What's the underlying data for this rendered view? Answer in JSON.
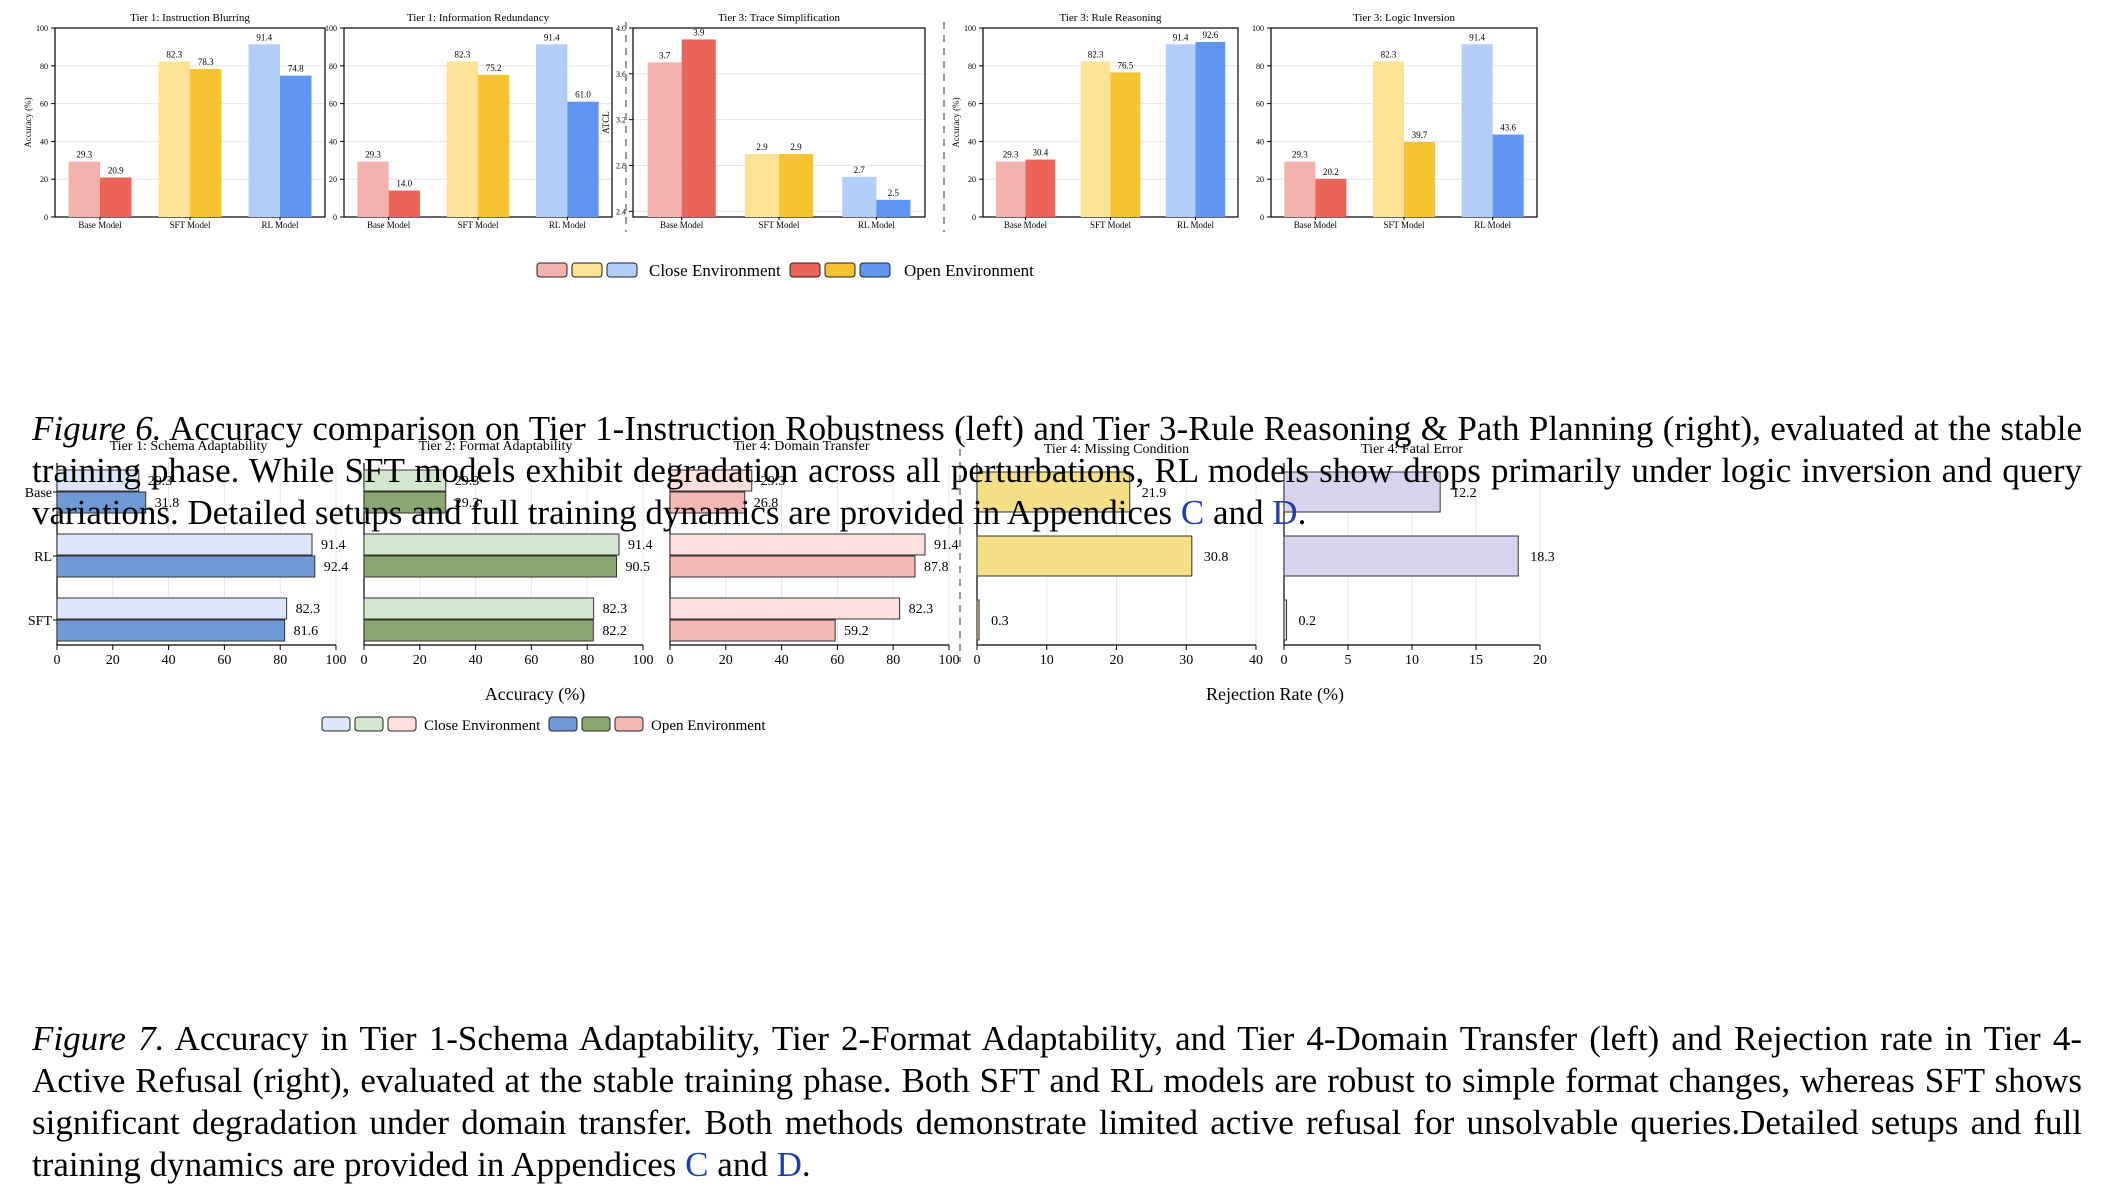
{
  "figure6": {
    "caption": {
      "label": "Figure 6.",
      "text": "Accuracy comparison on Tier 1-Instruction Robustness (left) and Tier 3-Rule Reasoning & Path Planning (right), evaluated at the stable training phase. While SFT models exhibit degradation across all perturbations, RL models show drops primarily under logic inversion and query variations. Detailed setups and full training dynamics are provided in Appendices ",
      "ref1": "C",
      "mid": " and ",
      "ref2": "D",
      "end": "."
    },
    "legend": {
      "close": "Close Environment",
      "open": "Open Environment"
    }
  },
  "figure7": {
    "caption": {
      "label": "Figure 7.",
      "text": "Accuracy in Tier 1-Schema Adaptability, Tier 2-Format Adaptability, and Tier 4-Domain Transfer (left) and Rejection rate in Tier 4-Active Refusal (right), evaluated at the stable training phase. Both SFT and RL models are robust to simple format changes, whereas SFT shows significant degradation under domain transfer. Both methods demonstrate limited active refusal for unsolvable queries.Detailed setups and full training dynamics are provided in Appendices ",
      "ref1": "C",
      "mid": " and ",
      "ref2": "D",
      "end": "."
    },
    "legend": {
      "close": "Close Environment",
      "open": "Open Environment"
    },
    "xlabel_left": "Accuracy (%)",
    "xlabel_right": "Rejection Rate (%)"
  },
  "colors": {
    "base_close": "#f4b1ad",
    "base_open": "#ec6357",
    "sft_close": "#fbe294",
    "sft_open": "#f6c431",
    "rl_close": "#b3cdf9",
    "rl_open": "#5e96f0",
    "blue_close": "#dbe6fb",
    "blue_open": "#7099d8",
    "green_close": "#d3e7cf",
    "green_open": "#89a771",
    "pink_close": "#fde0dd",
    "pink_open": "#f5b9b5",
    "yellow": "#f4df86",
    "purple": "#d9d2ee"
  },
  "chart_data": [
    {
      "type": "bar",
      "title": "Tier 1: Instruction Blurring",
      "ylabel": "Accuracy (%)",
      "ylim": [
        0,
        100
      ],
      "categories": [
        "Base Model",
        "SFT Model",
        "RL Model"
      ],
      "series": [
        {
          "name": "Close Environment",
          "values": [
            29.3,
            82.3,
            91.4
          ]
        },
        {
          "name": "Open Environment",
          "values": [
            20.9,
            78.3,
            74.8
          ]
        }
      ]
    },
    {
      "type": "bar",
      "title": "Tier 1: Information Redundancy",
      "ylabel": "",
      "ylim": [
        0,
        100
      ],
      "categories": [
        "Base Model",
        "SFT Model",
        "RL Model"
      ],
      "series": [
        {
          "name": "Close Environment",
          "values": [
            29.3,
            82.3,
            91.4
          ]
        },
        {
          "name": "Open Environment",
          "values": [
            14.0,
            75.2,
            61.0
          ]
        }
      ]
    },
    {
      "type": "bar",
      "title": "Tier 3: Trace Simplification",
      "ylabel": "ATCL",
      "ylim": [
        2.35,
        4.0
      ],
      "categories": [
        "Base Model",
        "SFT Model",
        "RL Model"
      ],
      "series": [
        {
          "name": "Close Environment",
          "values": [
            3.7,
            2.9,
            2.7
          ]
        },
        {
          "name": "Open Environment",
          "values": [
            3.9,
            2.9,
            2.5
          ]
        }
      ]
    },
    {
      "type": "bar",
      "title": "Tier 3: Rule Reasoning",
      "ylabel": "Accuracy (%)",
      "ylim": [
        0,
        100
      ],
      "categories": [
        "Base Model",
        "SFT Model",
        "RL Model"
      ],
      "series": [
        {
          "name": "Close Environment",
          "values": [
            29.3,
            82.3,
            91.4
          ]
        },
        {
          "name": "Open Environment",
          "values": [
            30.4,
            76.5,
            92.6
          ]
        }
      ]
    },
    {
      "type": "bar",
      "title": "Tier 3: Logic Inversion",
      "ylabel": "",
      "ylim": [
        0,
        100
      ],
      "categories": [
        "Base Model",
        "SFT Model",
        "RL Model"
      ],
      "series": [
        {
          "name": "Close Environment",
          "values": [
            29.3,
            82.3,
            91.4
          ]
        },
        {
          "name": "Open Environment",
          "values": [
            20.2,
            39.7,
            43.6
          ]
        }
      ]
    },
    {
      "type": "bar",
      "orientation": "horizontal",
      "title": "Tier 1: Schema Adaptability",
      "xlim": [
        0,
        100
      ],
      "categories": [
        "Base",
        "RL",
        "SFT"
      ],
      "series": [
        {
          "name": "Close Environment",
          "values": [
            29.3,
            91.4,
            82.3
          ]
        },
        {
          "name": "Open Environment",
          "values": [
            31.8,
            92.4,
            81.6
          ]
        }
      ]
    },
    {
      "type": "bar",
      "orientation": "horizontal",
      "title": "Tier 2: Format Adaptability",
      "xlim": [
        0,
        100
      ],
      "categories": [
        "Base",
        "RL",
        "SFT"
      ],
      "series": [
        {
          "name": "Close Environment",
          "values": [
            29.3,
            91.4,
            82.3
          ]
        },
        {
          "name": "Open Environment",
          "values": [
            29.3,
            90.5,
            82.2
          ]
        }
      ]
    },
    {
      "type": "bar",
      "orientation": "horizontal",
      "title": "Tier 4: Domain Transfer",
      "xlim": [
        0,
        100
      ],
      "categories": [
        "Base",
        "RL",
        "SFT"
      ],
      "series": [
        {
          "name": "Close Environment",
          "values": [
            29.3,
            91.4,
            82.3
          ]
        },
        {
          "name": "Open Environment",
          "values": [
            26.8,
            87.8,
            59.2
          ]
        }
      ]
    },
    {
      "type": "bar",
      "orientation": "horizontal",
      "title": "Tier 4: Missing Condition",
      "xlim": [
        0,
        40
      ],
      "categories": [
        "Base",
        "RL",
        "SFT"
      ],
      "values": [
        21.9,
        30.8,
        0.3
      ]
    },
    {
      "type": "bar",
      "orientation": "horizontal",
      "title": "Tier 4: Fatal Error",
      "xlim": [
        0,
        20
      ],
      "categories": [
        "Base",
        "RL",
        "SFT"
      ],
      "values": [
        12.2,
        18.3,
        0.2
      ]
    }
  ]
}
